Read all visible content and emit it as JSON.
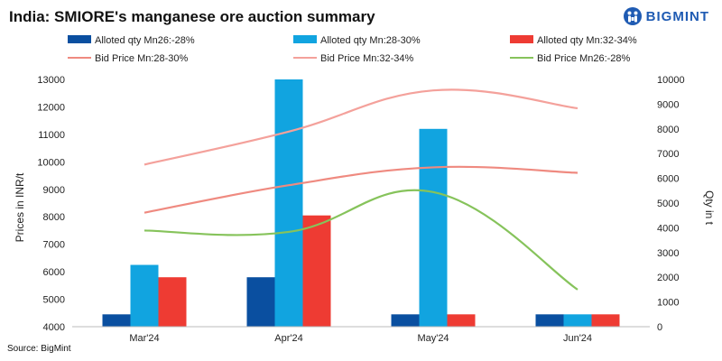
{
  "title": "India: SMIORE's manganese ore auction summary",
  "brand": {
    "name": "BIGMINT",
    "icon": "bigmint-logo-icon"
  },
  "source": "Source: BigMint",
  "colors": {
    "qty_26_28": "#0a4fa0",
    "qty_28_30": "#11a4e0",
    "qty_32_34": "#ee3b33",
    "bid_28_30": "#ef8a80",
    "bid_32_34": "#f4a19b",
    "bid_26_28": "#86c35b"
  },
  "chart_data": {
    "type": "bar+line",
    "categories": [
      "Mar'24",
      "Apr'24",
      "May'24",
      "Jun'24"
    ],
    "ylabel_left": "Prices in INR/t",
    "ylabel_right": "Qty in t",
    "ylim_left": [
      4000,
      13000
    ],
    "ylim_right": [
      0,
      10000
    ],
    "yticks_left": [
      "4000",
      "5000",
      "6000",
      "7000",
      "8000",
      "9000",
      "10000",
      "11000",
      "12000",
      "13000"
    ],
    "yticks_right": [
      "0",
      "1000",
      "2000",
      "3000",
      "4000",
      "5000",
      "6000",
      "7000",
      "8000",
      "9000",
      "10000"
    ],
    "bar_series": [
      {
        "name": "Alloted qty Mn26:-28%",
        "color_key": "qty_26_28",
        "values": [
          500,
          2000,
          500,
          500
        ]
      },
      {
        "name": "Alloted qty Mn:28-30%",
        "color_key": "qty_28_30",
        "values": [
          2500,
          10000,
          8000,
          500
        ]
      },
      {
        "name": "Alloted qty Mn:32-34%",
        "color_key": "qty_32_34",
        "values": [
          2000,
          4500,
          500,
          500
        ]
      }
    ],
    "line_series": [
      {
        "name": "Bid Price Mn:28-30%",
        "color_key": "bid_28_30",
        "values": [
          8150,
          9150,
          9800,
          9600
        ]
      },
      {
        "name": "Bid Price  Mn:32-34%",
        "color_key": "bid_32_34",
        "values": [
          9900,
          11100,
          12600,
          11950
        ]
      },
      {
        "name": "Bid Price Mn26:-28%",
        "color_key": "bid_26_28",
        "values": [
          7500,
          7450,
          8900,
          5350
        ]
      }
    ]
  }
}
